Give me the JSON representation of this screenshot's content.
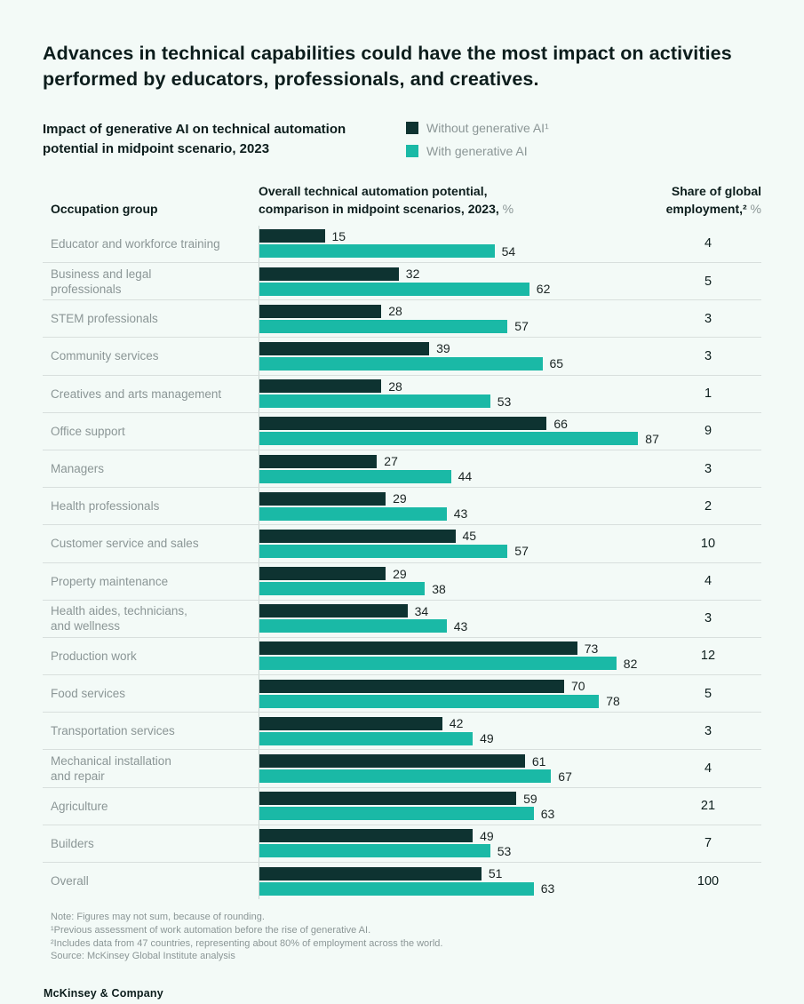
{
  "page": {
    "title": "Advances in technical capabilities could have the most impact on activities performed by educators, professionals, and creatives.",
    "subtitle": "Impact of generative AI on technical automation\npotential in midpoint scenario, 2023",
    "brand": "McKinsey & Company",
    "colors": {
      "background": "#f3faf7",
      "bar_without_genai": "#0e3331",
      "bar_with_genai": "#1ab9a6",
      "text_dark": "#0c1d1c",
      "text_gray": "#8b9696",
      "divider": "#d8dfdd"
    }
  },
  "legend": {
    "items": [
      {
        "label": "Without generative AI¹",
        "color": "#0e3331"
      },
      {
        "label": "With generative AI",
        "color": "#1ab9a6"
      }
    ]
  },
  "columns": {
    "occupation": "Occupation group",
    "potential_line1": "Overall technical automation potential,",
    "potential_line2": "comparison in midpoint scenarios, 2023,",
    "potential_unit": "%",
    "share_line1": "Share of global",
    "share_line2": "employment,²",
    "share_unit": "%"
  },
  "chart_data": {
    "type": "bar",
    "orientation": "horizontal",
    "title": "Impact of generative AI on technical automation potential in midpoint scenario, 2023",
    "xlabel": "Overall technical automation potential, comparison in midpoint scenarios, 2023, %",
    "xlim": [
      0,
      92
    ],
    "grid": false,
    "legend_position": "top-right",
    "categories": [
      "Educator and workforce training",
      "Business and legal\nprofessionals",
      "STEM professionals",
      "Community services",
      "Creatives and arts management",
      "Office support",
      "Managers",
      "Health professionals",
      "Customer service and sales",
      "Property maintenance",
      "Health aides, technicians,\nand wellness",
      "Production work",
      "Food services",
      "Transportation services",
      "Mechanical installation\nand repair",
      "Agriculture",
      "Builders",
      "Overall"
    ],
    "series": [
      {
        "name": "Without generative AI",
        "color": "#0e3331",
        "values": [
          15,
          32,
          28,
          39,
          28,
          66,
          27,
          29,
          45,
          29,
          34,
          73,
          70,
          42,
          61,
          59,
          49,
          51
        ]
      },
      {
        "name": "With generative AI",
        "color": "#1ab9a6",
        "values": [
          54,
          62,
          57,
          65,
          53,
          87,
          44,
          43,
          57,
          38,
          43,
          82,
          78,
          49,
          67,
          63,
          53,
          63
        ]
      }
    ],
    "share_of_global_employment": [
      4,
      5,
      3,
      3,
      1,
      9,
      3,
      2,
      10,
      4,
      3,
      12,
      5,
      3,
      4,
      21,
      7,
      100
    ]
  },
  "notes": [
    "Note: Figures may not sum, because of rounding.",
    "¹Previous assessment of work automation before the rise of generative AI.",
    "²Includes data from 47 countries, representing about 80% of employment across the world.",
    "Source: McKinsey Global Institute analysis"
  ]
}
